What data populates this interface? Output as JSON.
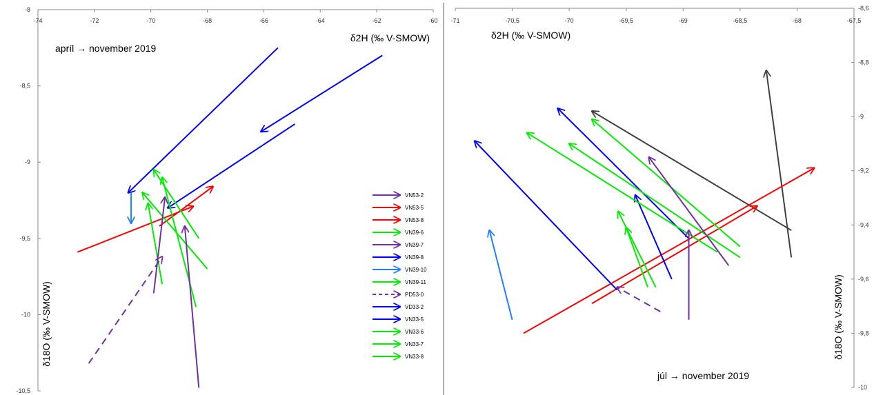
{
  "chart_data": [
    {
      "type": "line",
      "annotation": "apríl → november 2019",
      "xlabel": "δ2H (‰ V-SMOW)",
      "ylabel": "δ18O (‰ V-SMOW)",
      "xlim": [
        -74,
        -60
      ],
      "ylim": [
        -10.5,
        -8
      ],
      "xticks": [
        "-74",
        "-72",
        "-70",
        "-68",
        "-66",
        "-64",
        "-62",
        "-60"
      ],
      "yticks": [
        "-8",
        "-8,5",
        "-9",
        "-9,5",
        "-10",
        "-10,5"
      ],
      "x_axis_position": "top",
      "grid": false,
      "legend_position": "right",
      "legend": [
        {
          "name": "VN53-2",
          "color": "#7030A0"
        },
        {
          "name": "VN53-5",
          "color": "#FF0000"
        },
        {
          "name": "VN53-8",
          "color": "#FF0000"
        },
        {
          "name": "VN39-6",
          "color": "#00EE00"
        },
        {
          "name": "VN39-7",
          "color": "#7030A0"
        },
        {
          "name": "VN39-8",
          "color": "#0000FF"
        },
        {
          "name": "VN39-10",
          "color": "#1E7FFF"
        },
        {
          "name": "VN39-11",
          "color": "#00EE00"
        },
        {
          "name": "PD53-0",
          "color": "#7030A0",
          "dashed": true
        },
        {
          "name": "VD33-2",
          "color": "#0000FF"
        },
        {
          "name": "VN33-5",
          "color": "#0000FF"
        },
        {
          "name": "VN33-6",
          "color": "#00EE00"
        },
        {
          "name": "VN33-7",
          "color": "#00EE00"
        },
        {
          "name": "VN33-8",
          "color": "#00EE00"
        }
      ],
      "arrows": [
        {
          "from": [
            -65.5,
            -8.25
          ],
          "to": [
            -70.8,
            -9.2
          ],
          "color": "#0000FF"
        },
        {
          "from": [
            -61.8,
            -8.3
          ],
          "to": [
            -66.1,
            -8.8
          ],
          "color": "#0000FF"
        },
        {
          "from": [
            -64.9,
            -8.75
          ],
          "to": [
            -69.4,
            -9.3
          ],
          "color": "#0000FF"
        },
        {
          "from": [
            -70.7,
            -9.2
          ],
          "to": [
            -70.7,
            -9.4
          ],
          "color": "#1E7FFF"
        },
        {
          "from": [
            -72.6,
            -9.59
          ],
          "to": [
            -68.5,
            -9.29
          ],
          "color": "#FF0000"
        },
        {
          "from": [
            -69.7,
            -9.42
          ],
          "to": [
            -67.8,
            -9.16
          ],
          "color": "#FF0000"
        },
        {
          "from": [
            -68.3,
            -9.5
          ],
          "to": [
            -69.9,
            -9.05
          ],
          "color": "#00EE00"
        },
        {
          "from": [
            -68.0,
            -9.7
          ],
          "to": [
            -70.3,
            -9.2
          ],
          "color": "#00EE00"
        },
        {
          "from": [
            -68.4,
            -9.95
          ],
          "to": [
            -69.6,
            -9.1
          ],
          "color": "#00EE00"
        },
        {
          "from": [
            -69.6,
            -9.8
          ],
          "to": [
            -70.1,
            -9.27
          ],
          "color": "#00EE00"
        },
        {
          "from": [
            -69.9,
            -9.86
          ],
          "to": [
            -69.5,
            -9.23
          ],
          "color": "#7030A0"
        },
        {
          "from": [
            -68.3,
            -10.48
          ],
          "to": [
            -68.8,
            -9.42
          ],
          "color": "#7030A0"
        },
        {
          "from": [
            -72.2,
            -10.32
          ],
          "to": [
            -69.6,
            -9.62
          ],
          "color": "#7030A0",
          "dashed": true
        }
      ]
    },
    {
      "type": "line",
      "annotation": "júl → november 2019",
      "xlabel": "δ2H (‰ V-SMOW)",
      "ylabel": "δ18O (‰ V-SMOW)",
      "xlim": [
        -71,
        -67.5
      ],
      "ylim": [
        -10,
        -8.6
      ],
      "xticks": [
        "-71",
        "-70,5",
        "-70",
        "-69,5",
        "-69",
        "-68,5",
        "-68",
        "-67,5"
      ],
      "yticks": [
        "-8,6",
        "-8,8",
        "-9",
        "-9,2",
        "-9,4",
        "-9,6",
        "-9,8",
        "-10"
      ],
      "x_axis_position": "top",
      "y_axis_position": "right",
      "grid": false,
      "arrows": [
        {
          "from": [
            -68.05,
            -9.42
          ],
          "to": [
            -69.8,
            -8.98
          ],
          "color": "#404040"
        },
        {
          "from": [
            -68.05,
            -9.52
          ],
          "to": [
            -68.27,
            -8.83
          ],
          "color": "#404040"
        },
        {
          "from": [
            -70.4,
            -9.8
          ],
          "to": [
            -67.85,
            -9.19
          ],
          "color": "#FF0000"
        },
        {
          "from": [
            -69.8,
            -9.69
          ],
          "to": [
            -68.35,
            -9.33
          ],
          "color": "#FF0000"
        },
        {
          "from": [
            -68.95,
            -9.45
          ],
          "to": [
            -70.1,
            -8.97
          ],
          "color": "#0000FF"
        },
        {
          "from": [
            -69.58,
            -9.64
          ],
          "to": [
            -70.83,
            -9.09
          ],
          "color": "#0000FF"
        },
        {
          "from": [
            -69.1,
            -9.6
          ],
          "to": [
            -69.42,
            -9.29
          ],
          "color": "#0000FF"
        },
        {
          "from": [
            -70.5,
            -9.75
          ],
          "to": [
            -70.7,
            -9.42
          ],
          "color": "#1E7FFF"
        },
        {
          "from": [
            -68.5,
            -9.48
          ],
          "to": [
            -69.8,
            -9.01
          ],
          "color": "#00EE00"
        },
        {
          "from": [
            -68.5,
            -9.52
          ],
          "to": [
            -70.0,
            -9.1
          ],
          "color": "#00EE00"
        },
        {
          "from": [
            -68.7,
            -9.5
          ],
          "to": [
            -70.37,
            -9.06
          ],
          "color": "#00EE00"
        },
        {
          "from": [
            -69.24,
            -9.63
          ],
          "to": [
            -69.57,
            -9.35
          ],
          "color": "#00EE00"
        },
        {
          "from": [
            -69.31,
            -9.63
          ],
          "to": [
            -69.5,
            -9.41
          ],
          "color": "#00EE00"
        },
        {
          "from": [
            -68.6,
            -9.55
          ],
          "to": [
            -69.3,
            -9.15
          ],
          "color": "#7030A0"
        },
        {
          "from": [
            -68.95,
            -9.75
          ],
          "to": [
            -68.95,
            -9.42
          ],
          "color": "#7030A0"
        },
        {
          "from": [
            -69.2,
            -9.72
          ],
          "to": [
            -69.58,
            -9.63
          ],
          "color": "#7030A0",
          "dashed": true
        }
      ]
    }
  ]
}
